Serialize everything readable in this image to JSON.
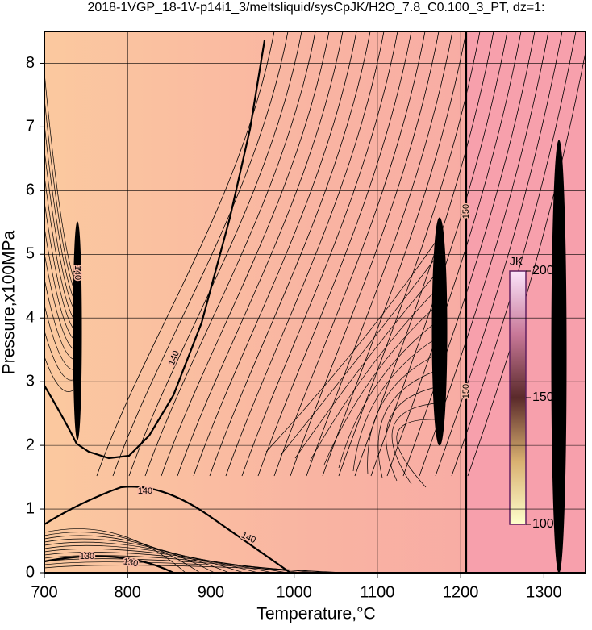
{
  "chart_data": {
    "type": "contour",
    "title": "2018-1VGP_18-1V-p14i1_3/meltsliquid/sysCpJK/H2O_7.8_C0.100_3_PT, dz=1:",
    "xlabel": "Temperature,°C",
    "ylabel": "Pressure,x100MPa",
    "xlim": [
      700,
      1350
    ],
    "ylim": [
      0,
      8.5
    ],
    "xticks": [
      700,
      800,
      900,
      1000,
      1100,
      1200,
      1300
    ],
    "yticks": [
      0,
      1,
      2,
      3,
      4,
      5,
      6,
      7,
      8
    ],
    "grid": true,
    "contour_labels": [
      140,
      140,
      140,
      140,
      130,
      130,
      150,
      150
    ],
    "colorbar": {
      "label": "JK",
      "lim": [
        100,
        200
      ],
      "ticks": [
        100,
        150,
        200
      ]
    }
  }
}
